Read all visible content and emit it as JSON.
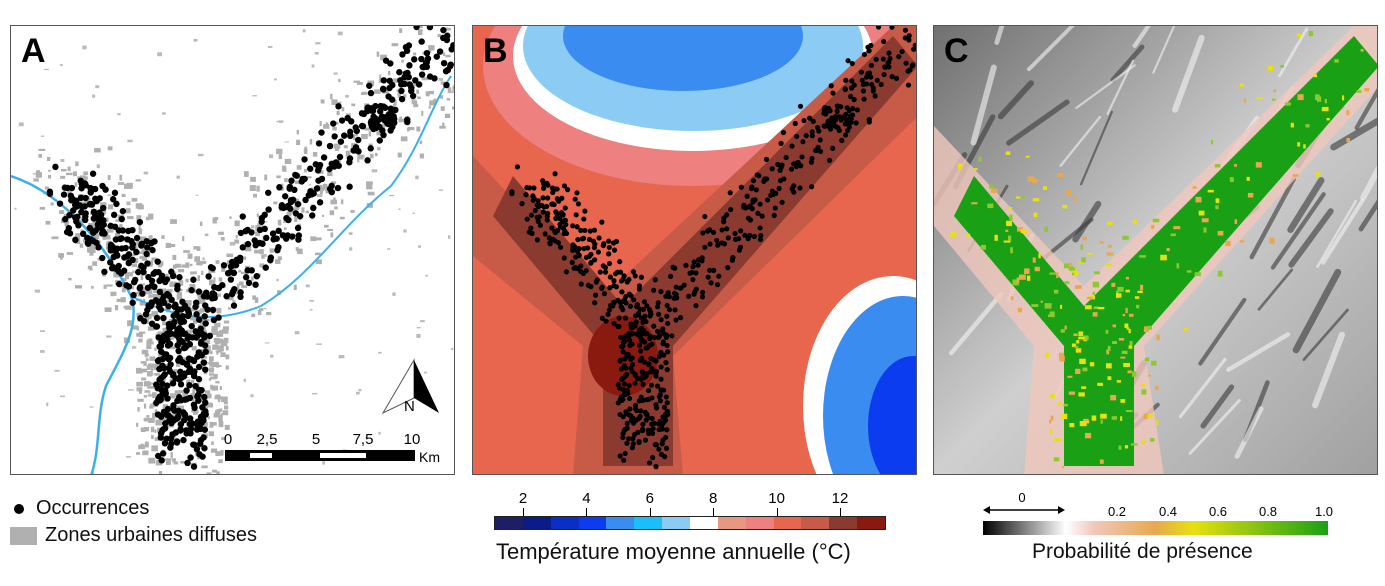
{
  "panels": {
    "a": {
      "label": "A"
    },
    "b": {
      "label": "B"
    },
    "c": {
      "label": "C"
    }
  },
  "scale_bar": {
    "ticks": [
      "0",
      "2,5",
      "5",
      "7,5",
      "10"
    ],
    "unit": "Km"
  },
  "north_arrow": {
    "label": "N"
  },
  "legend_a": {
    "items": [
      {
        "label": "Occurrences",
        "symbol": "black-dot",
        "color": "#000000"
      },
      {
        "label": "Zones urbaines diffuses",
        "symbol": "gray-box",
        "color": "#b0b0b0"
      }
    ]
  },
  "legend_b": {
    "title": "Température moyenne annuelle (°C)",
    "ticks": [
      "2",
      "4",
      "6",
      "8",
      "10",
      "12"
    ],
    "colors": [
      "#1c1f66",
      "#0b1b8a",
      "#0b2ec6",
      "#0b3cf0",
      "#3a8cf0",
      "#18bff8",
      "#8ccbf4",
      "#ffffff",
      "#e89880",
      "#ee8080",
      "#e8654e",
      "#c85a48",
      "#8a3a2e",
      "#8a1a10"
    ]
  },
  "legend_c": {
    "title": "Probabilité de présence",
    "zero_label": "0",
    "ticks": [
      "0.2",
      "0.4",
      "0.6",
      "0.8",
      "1.0"
    ],
    "colors": {
      "low": "#000000",
      "mid_gray": "#ffffff",
      "pink": "#f0c8bc",
      "orange": "#e8a850",
      "yellow": "#e8e010",
      "green": "#1aa014"
    }
  }
}
